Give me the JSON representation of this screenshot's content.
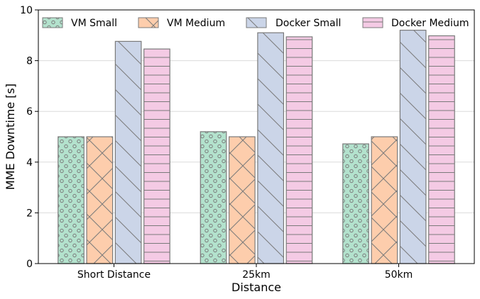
{
  "chart_data": {
    "type": "bar",
    "title": "",
    "xlabel": "Distance",
    "ylabel": "MME Downtime [s]",
    "ylim": [
      0,
      10
    ],
    "yticks": [
      0,
      2,
      4,
      6,
      8,
      10
    ],
    "grid": "horizontal",
    "legend_position": "top",
    "categories": [
      "Short Distance",
      "25km",
      "50km"
    ],
    "series": [
      {
        "name": "VM Small",
        "values": [
          5.0,
          5.2,
          4.72
        ],
        "color": "#b3e2cd",
        "pattern": "dots"
      },
      {
        "name": "VM Medium",
        "values": [
          5.0,
          5.0,
          5.0
        ],
        "color": "#fdcdac",
        "pattern": "crosshatch"
      },
      {
        "name": "Docker Small",
        "values": [
          8.76,
          9.1,
          9.2
        ],
        "color": "#cbd5e8",
        "pattern": "backslash"
      },
      {
        "name": "Docker Medium",
        "values": [
          8.46,
          8.94,
          8.98
        ],
        "color": "#f4cae4",
        "pattern": "horizontal"
      }
    ]
  }
}
